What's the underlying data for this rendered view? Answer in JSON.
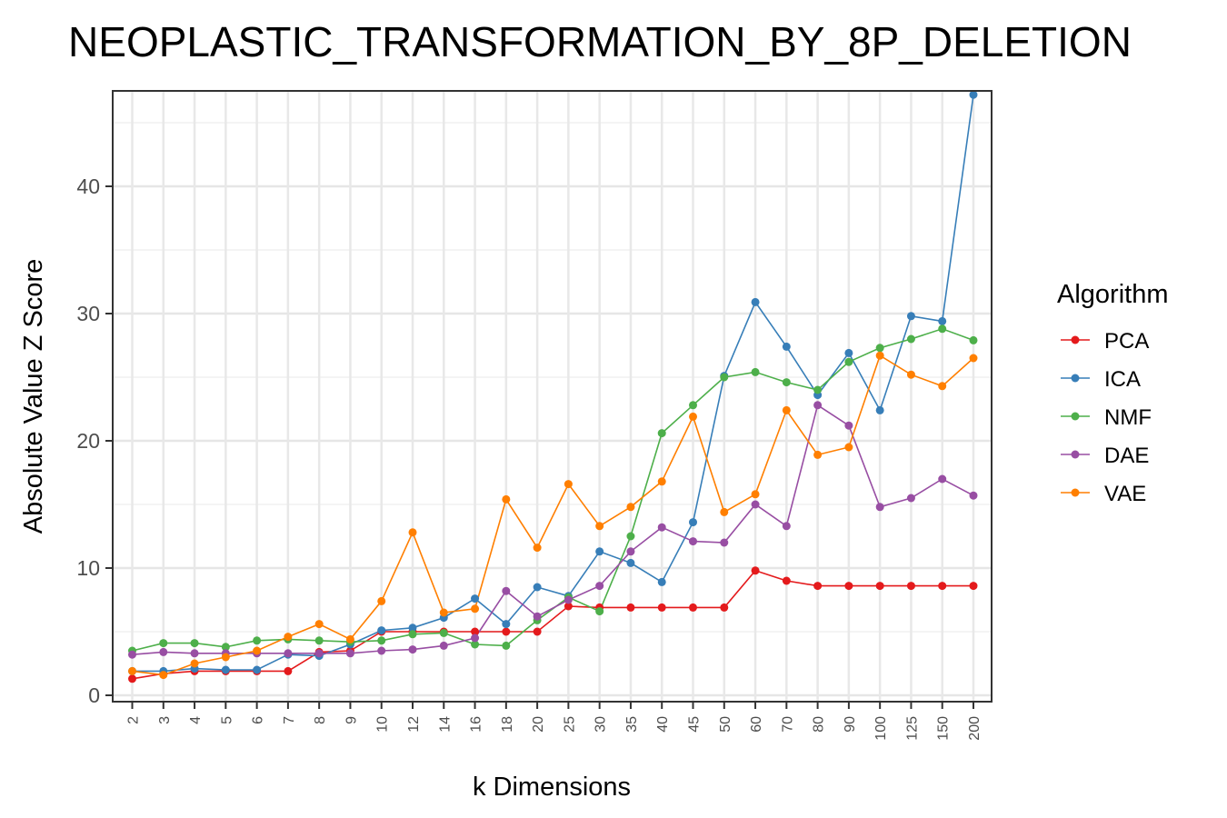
{
  "chart_data": {
    "type": "line",
    "title": "NEOPLASTIC_TRANSFORMATION_BY_8P_DELETION",
    "xlabel": "k Dimensions",
    "ylabel": "Absolute Value Z Score",
    "categories": [
      "2",
      "3",
      "4",
      "5",
      "6",
      "7",
      "8",
      "9",
      "10",
      "12",
      "14",
      "16",
      "18",
      "20",
      "25",
      "30",
      "35",
      "40",
      "45",
      "50",
      "60",
      "70",
      "80",
      "90",
      "100",
      "125",
      "150",
      "200"
    ],
    "ylim": [
      -0.5,
      47.5
    ],
    "yticks": [
      0,
      10,
      20,
      30,
      40
    ],
    "grid": true,
    "legend_title": "Algorithm",
    "legend_position": "right",
    "series": [
      {
        "name": "PCA",
        "color": "#e41a1c",
        "values": [
          1.3,
          1.7,
          1.9,
          1.9,
          1.9,
          1.9,
          3.4,
          3.5,
          5.0,
          5.0,
          5.0,
          5.0,
          5.0,
          5.0,
          7.0,
          6.9,
          6.9,
          6.9,
          6.9,
          6.9,
          9.8,
          9.0,
          8.6,
          8.6,
          8.6,
          8.6,
          8.6,
          8.6
        ]
      },
      {
        "name": "ICA",
        "color": "#377eb8",
        "values": [
          1.9,
          1.9,
          2.1,
          2.0,
          2.0,
          3.2,
          3.1,
          4.0,
          5.1,
          5.3,
          6.1,
          7.6,
          5.6,
          8.5,
          7.8,
          11.3,
          10.4,
          8.9,
          13.6,
          25.1,
          30.9,
          27.4,
          23.6,
          26.9,
          22.4,
          29.8,
          29.4,
          47.2
        ]
      },
      {
        "name": "NMF",
        "color": "#4daf4a",
        "values": [
          3.5,
          4.1,
          4.1,
          3.8,
          4.3,
          4.4,
          4.3,
          4.2,
          4.3,
          4.8,
          4.9,
          4.0,
          3.9,
          5.9,
          7.7,
          6.6,
          12.5,
          20.6,
          22.8,
          25.0,
          25.4,
          24.6,
          24.0,
          26.2,
          27.3,
          28.0,
          28.8,
          27.9
        ]
      },
      {
        "name": "DAE",
        "color": "#984ea3",
        "values": [
          3.2,
          3.4,
          3.3,
          3.3,
          3.3,
          3.3,
          3.3,
          3.3,
          3.5,
          3.6,
          3.9,
          4.5,
          8.2,
          6.2,
          7.5,
          8.6,
          11.3,
          13.2,
          12.1,
          12.0,
          15.0,
          13.3,
          22.8,
          21.2,
          14.8,
          15.5,
          17.0,
          15.7
        ]
      },
      {
        "name": "VAE",
        "color": "#ff7f00",
        "values": [
          1.9,
          1.6,
          2.5,
          3.0,
          3.5,
          4.6,
          5.6,
          4.4,
          7.4,
          12.8,
          6.5,
          6.8,
          15.4,
          11.6,
          16.6,
          13.3,
          14.8,
          16.8,
          21.9,
          14.4,
          15.8,
          22.4,
          18.9,
          19.5,
          26.7,
          25.2,
          24.3,
          26.5
        ]
      }
    ]
  }
}
